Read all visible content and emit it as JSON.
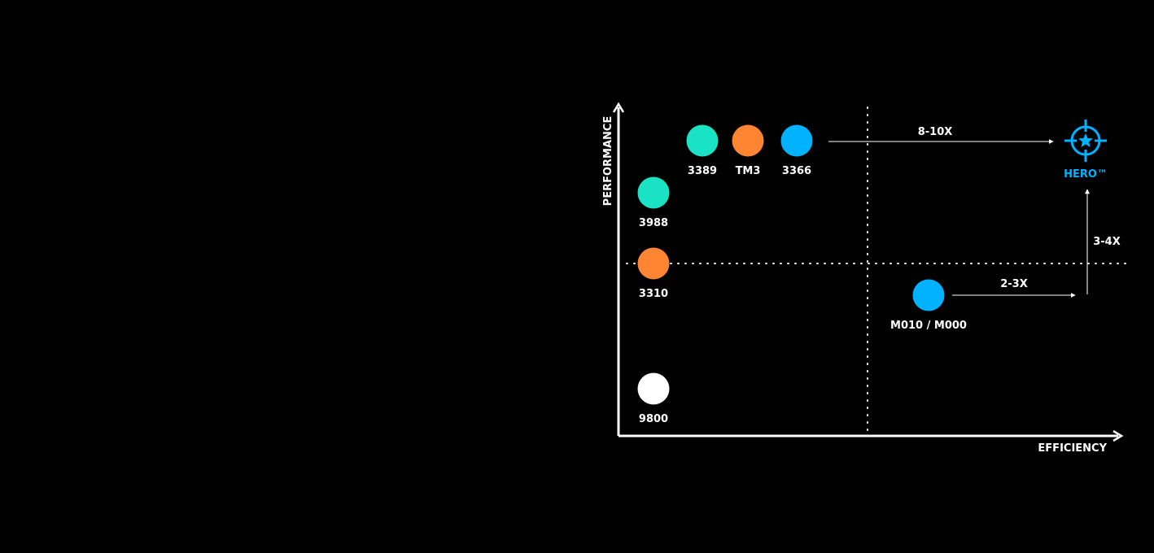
{
  "chart_data": {
    "type": "scatter",
    "xlabel": "EFFICIENCY",
    "ylabel": "PERFORMANCE",
    "points": [
      {
        "label": "3389",
        "color": "#19e3c4"
      },
      {
        "label": "TM3",
        "color": "#ff8533"
      },
      {
        "label": "3366",
        "color": "#00b2ff"
      },
      {
        "label": "3988",
        "color": "#19e3c4"
      },
      {
        "label": "3310",
        "color": "#ff8533"
      },
      {
        "label": "M010 / M000",
        "color": "#00b2ff"
      },
      {
        "label": "9800",
        "color": "#ffffff"
      }
    ],
    "hero": {
      "label": "HERO™",
      "icon": "hero-target-star-icon",
      "color": "#00b2ff"
    },
    "multipliers": [
      {
        "from": "3366",
        "to": "HERO™",
        "label": "8-10X"
      },
      {
        "from": "M010 / M000",
        "to": "HERO™",
        "label": "2-3X"
      },
      {
        "from": "M010 / M000",
        "to": "HERO™",
        "label": "3-4X"
      }
    ],
    "grid": "dotted quadrant dividers",
    "colors": {
      "background": "#000000",
      "axis": "#ffffff",
      "text": "#ffffff"
    }
  }
}
